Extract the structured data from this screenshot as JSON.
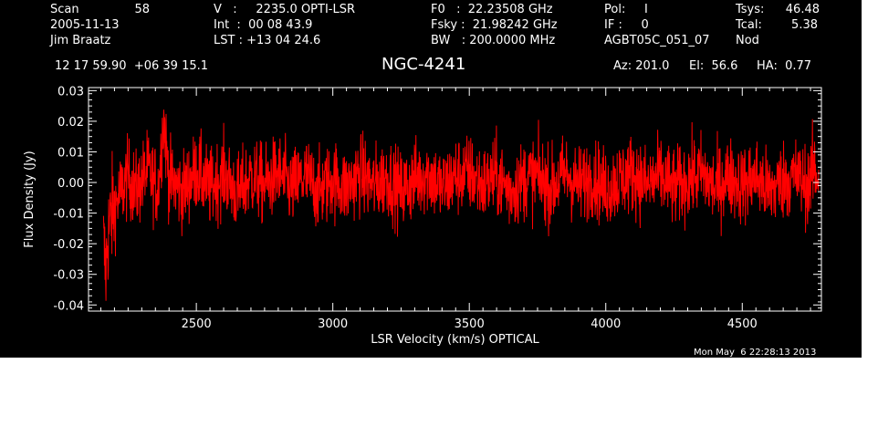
{
  "header": {
    "scan_label": "Scan",
    "scan_value": "58",
    "date": "2005-11-13",
    "observer": "Jim Braatz",
    "velocity": "V   :     2235.0 OPTI-LSR",
    "int_time": "Int  :  00 08 43.9",
    "lst": "LST : +13 04 24.6",
    "f0": "F0   :  22.23508 GHz",
    "fsky": "Fsky :  21.98242 GHz",
    "bw": "BW   : 200.0000 MHz",
    "pol": "Pol:     I",
    "if": "IF :     0",
    "project": "AGBT05C_051_07",
    "tsys_label": "Tsys:",
    "tsys_value": "46.48",
    "tcal_label": "Tcal:",
    "tcal_value": "5.38",
    "proc": "Nod",
    "coords": "12 17 59.90  +06 39 15.1",
    "source": "NGC-4241",
    "az": "Az: 201.0",
    "el": "El:  56.6",
    "ha": "HA:  0.77",
    "timestamp": "Mon May  6 22:28:13 2013"
  },
  "chart_data": {
    "type": "line",
    "title": "NGC-4241",
    "xlabel": "LSR Velocity (km/s) OPTICAL",
    "ylabel": "Flux Density (Jy)",
    "xlim": [
      2105,
      4790
    ],
    "ylim": [
      -0.042,
      0.031
    ],
    "xticks": [
      2500,
      3000,
      3500,
      4000,
      4500
    ],
    "yticks": [
      -0.04,
      -0.03,
      -0.02,
      -0.01,
      0.0,
      0.01,
      0.02,
      0.03
    ],
    "ytick_labels": [
      "-0.04",
      "-0.03",
      "-0.02",
      "-0.01",
      "0.00",
      "0.01",
      "0.02",
      "0.03"
    ],
    "grid": false,
    "series": [
      {
        "color": "#ff0000",
        "x": [
          2160,
          2168,
          2175,
          2185,
          2200,
          2220,
          2250,
          2280,
          2320,
          2360,
          2380,
          2400,
          2450,
          2500,
          2550,
          2600,
          2650,
          2700,
          2750,
          2800,
          2850,
          2900,
          2950,
          3000,
          3050,
          3100,
          3150,
          3200,
          3250,
          3300,
          3350,
          3400,
          3450,
          3500,
          3550,
          3600,
          3650,
          3700,
          3750,
          3800,
          3850,
          3900,
          3950,
          4000,
          4050,
          4100,
          4150,
          4200,
          4250,
          4300,
          4350,
          4400,
          4450,
          4500,
          4550,
          4600,
          4650,
          4700,
          4740,
          4760,
          4780
        ],
        "y": [
          -0.02,
          -0.03,
          -0.018,
          -0.012,
          -0.008,
          -0.004,
          0.002,
          -0.003,
          0.004,
          -0.002,
          0.021,
          0.001,
          -0.003,
          0.004,
          -0.002,
          0.003,
          -0.004,
          0.002,
          -0.001,
          0.003,
          -0.002,
          0.002,
          -0.003,
          0.001,
          -0.002,
          0.003,
          -0.001,
          0.002,
          -0.003,
          0.001,
          0.003,
          -0.002,
          0.002,
          0.003,
          -0.001,
          0.002,
          -0.003,
          0.001,
          0.002,
          -0.002,
          0.003,
          -0.001,
          0.002,
          -0.002,
          0.001,
          0.003,
          -0.001,
          0.002,
          -0.002,
          0.001,
          0.003,
          -0.002,
          0.002,
          -0.001,
          0.002,
          -0.003,
          0.001,
          0.002,
          -0.001,
          0.004,
          0.002
        ],
        "noise_rms_jy": 0.0065
      }
    ]
  }
}
